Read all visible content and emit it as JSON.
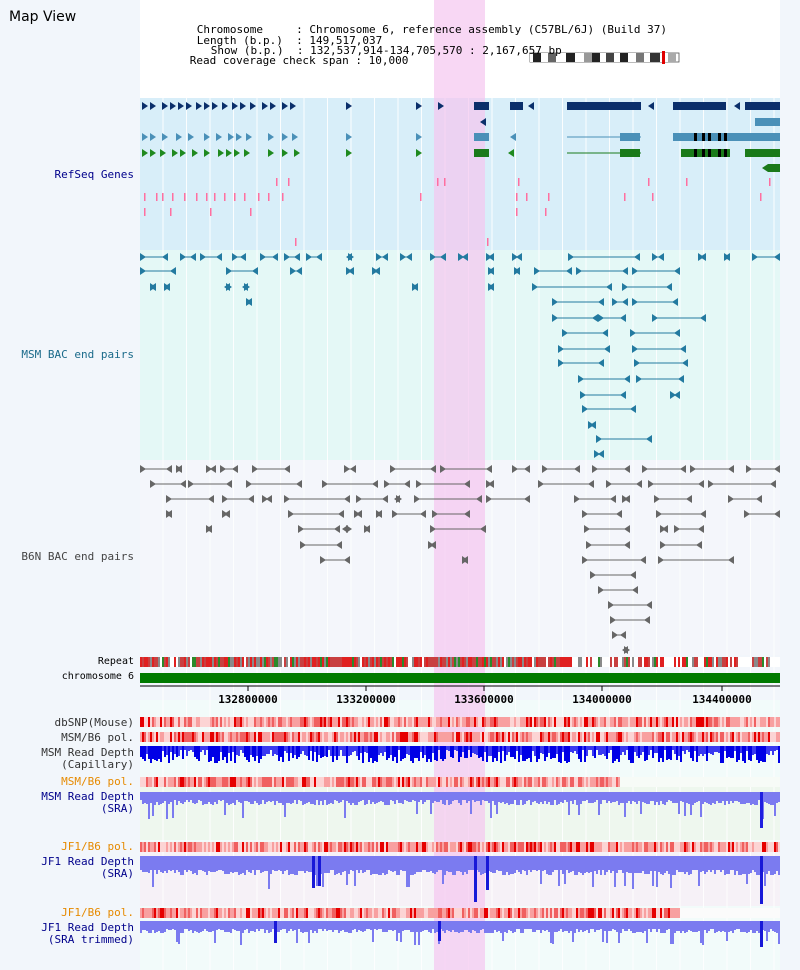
{
  "title": "Map View",
  "info": {
    "chromosome_key": "Chromosome",
    "chromosome_val": "Chromosome 6, reference assembly (C57BL/6J) (Build 37)",
    "length_key": "Length (b.p.)",
    "length_val": "149,517,037",
    "show_key": "Show (b.p.)",
    "show_val": "132,537,914-134,705,570 : 2,167,657 bp",
    "span_key": "Read coverage check span",
    "span_val": "10,000"
  },
  "tracks": {
    "refseq": "RefSeq Genes",
    "msm_bac": "MSM BAC end pairs",
    "b6n_bac": "B6N BAC end pairs",
    "repeat": "Repeat",
    "chromosome": "chromosome 6",
    "dbsnp": "dbSNP(Mouse)",
    "msm_b6_pol_1": "MSM/B6 pol.",
    "msm_depth_cap_1": "MSM Read Depth",
    "msm_depth_cap_2": "(Capillary)",
    "msm_b6_pol_2": "MSM/B6 pol.",
    "msm_depth_sra_1": "MSM Read Depth",
    "msm_depth_sra_2": "(SRA)",
    "jf1_b6_pol_1": "JF1/B6 pol.",
    "jf1_depth_sra_1": "JF1 Read Depth",
    "jf1_depth_sra_2": "(SRA)",
    "jf1_b6_pol_2": "JF1/B6 pol.",
    "jf1_depth_trim_1": "JF1 Read Depth",
    "jf1_depth_trim_2": "(SRA trimmed)"
  },
  "axis_ticks": [
    "132800000",
    "133200000",
    "133600000",
    "134000000",
    "134400000"
  ],
  "colors": {
    "refseq_label": "#00008b",
    "msm_label": "#1a6a8a",
    "pol_label": "#e68a00",
    "depth_label": "#00008b",
    "highlight": "#f5c6ef",
    "chromosome_bar": "#007a00",
    "depth_bar": "#7b7bf0"
  }
}
